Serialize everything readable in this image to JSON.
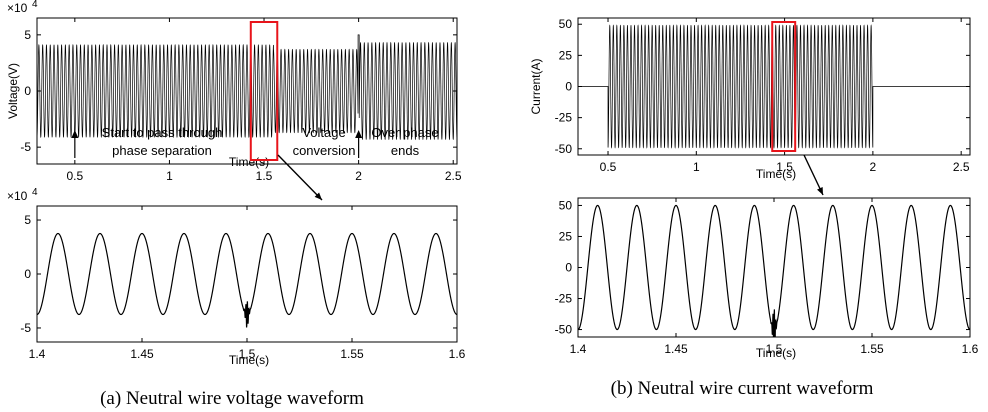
{
  "chart_data": [
    {
      "id": "voltage_overview",
      "type": "line",
      "xlabel": "Time(s)",
      "ylabel": "Voltage(V)",
      "y_multiplier": "×10",
      "y_multiplier_exp": "4",
      "xlim": [
        0.3,
        2.52
      ],
      "ylim": [
        -6.5,
        6.5
      ],
      "xticks": [
        0.5,
        1,
        1.5,
        2,
        2.5
      ],
      "xtick_labels": [
        "0.5",
        "1",
        "1.5",
        "2",
        "2.5"
      ],
      "yticks": [
        -5,
        0,
        5
      ],
      "ytick_labels": [
        "-5",
        "0",
        "5"
      ],
      "series": [
        {
          "freq_hz": 50,
          "segments": [
            {
              "x_from": 0.3,
              "x_to": 1.55,
              "amplitude": 4.1
            },
            {
              "x_from": 1.55,
              "x_to": 2.0,
              "amplitude": 3.7
            },
            {
              "x_from": 2.0,
              "x_to": 2.52,
              "amplitude": 4.3
            }
          ]
        }
      ],
      "highlight_x": [
        1.43,
        1.57
      ],
      "annotations": [
        {
          "lines": [
            "Start to pass through",
            "phase separation"
          ],
          "arrow_x": 0.5
        },
        {
          "lines": [
            "Voltage",
            "conversion"
          ]
        },
        {
          "lines": [
            "Over phase",
            "ends"
          ],
          "arrow_x": 2.0
        }
      ],
      "grid": false
    },
    {
      "id": "voltage_zoom",
      "type": "line",
      "xlabel": "Time(s)",
      "ylabel": "",
      "y_multiplier": "×10",
      "y_multiplier_exp": "4",
      "xlim": [
        1.4,
        1.6
      ],
      "ylim": [
        -6.3,
        6.3
      ],
      "xticks": [
        1.4,
        1.45,
        1.5,
        1.55,
        1.6
      ],
      "xtick_labels": [
        "1.4",
        "1.45",
        "1.5",
        "1.55",
        "1.6"
      ],
      "yticks": [
        -5,
        0,
        5
      ],
      "ytick_labels": [
        "-5",
        "0",
        "5"
      ],
      "series": [
        {
          "freq_hz": 50,
          "amplitude": 3.75,
          "glitch_at": 1.5
        }
      ],
      "grid": false
    },
    {
      "id": "current_overview",
      "type": "line",
      "xlabel": "Time(s)",
      "ylabel": "Current(A)",
      "xlim": [
        0.33,
        2.55
      ],
      "ylim": [
        -55,
        55
      ],
      "xticks": [
        0.5,
        1,
        1.5,
        2,
        2.5
      ],
      "xtick_labels": [
        "0.5",
        "1",
        "1.5",
        "2",
        "2.5"
      ],
      "yticks": [
        50,
        25,
        0,
        -25,
        -50
      ],
      "ytick_labels": [
        "50",
        "25",
        "0",
        "-25",
        "-50"
      ],
      "series": [
        {
          "freq_hz": 50,
          "segments": [
            {
              "x_from": 0.33,
              "x_to": 0.5,
              "amplitude": 0
            },
            {
              "x_from": 0.5,
              "x_to": 2.0,
              "amplitude": 49
            },
            {
              "x_from": 2.0,
              "x_to": 2.55,
              "amplitude": 0
            }
          ]
        }
      ],
      "highlight_x": [
        1.43,
        1.56
      ],
      "grid": false
    },
    {
      "id": "current_zoom",
      "type": "line",
      "xlabel": "Time(s)",
      "ylabel": "",
      "xlim": [
        1.4,
        1.6
      ],
      "ylim": [
        -56,
        56
      ],
      "xticks": [
        1.4,
        1.45,
        1.5,
        1.55,
        1.6
      ],
      "xtick_labels": [
        "1.4",
        "1.45",
        "1.5",
        "1.55",
        "1.6"
      ],
      "yticks": [
        50,
        25,
        0,
        -25,
        -50
      ],
      "ytick_labels": [
        "50",
        "25",
        "0",
        "-25",
        "-50"
      ],
      "series": [
        {
          "freq_hz": 50,
          "amplitude": 50,
          "glitch_at": 1.5
        }
      ],
      "grid": false
    }
  ],
  "captions": {
    "a": "(a) Neutral wire voltage waveform",
    "b": "(b) Neutral wire current waveform"
  },
  "colors": {
    "waveform": "#000000",
    "highlight": "#e8141b",
    "axis": "#000000"
  }
}
